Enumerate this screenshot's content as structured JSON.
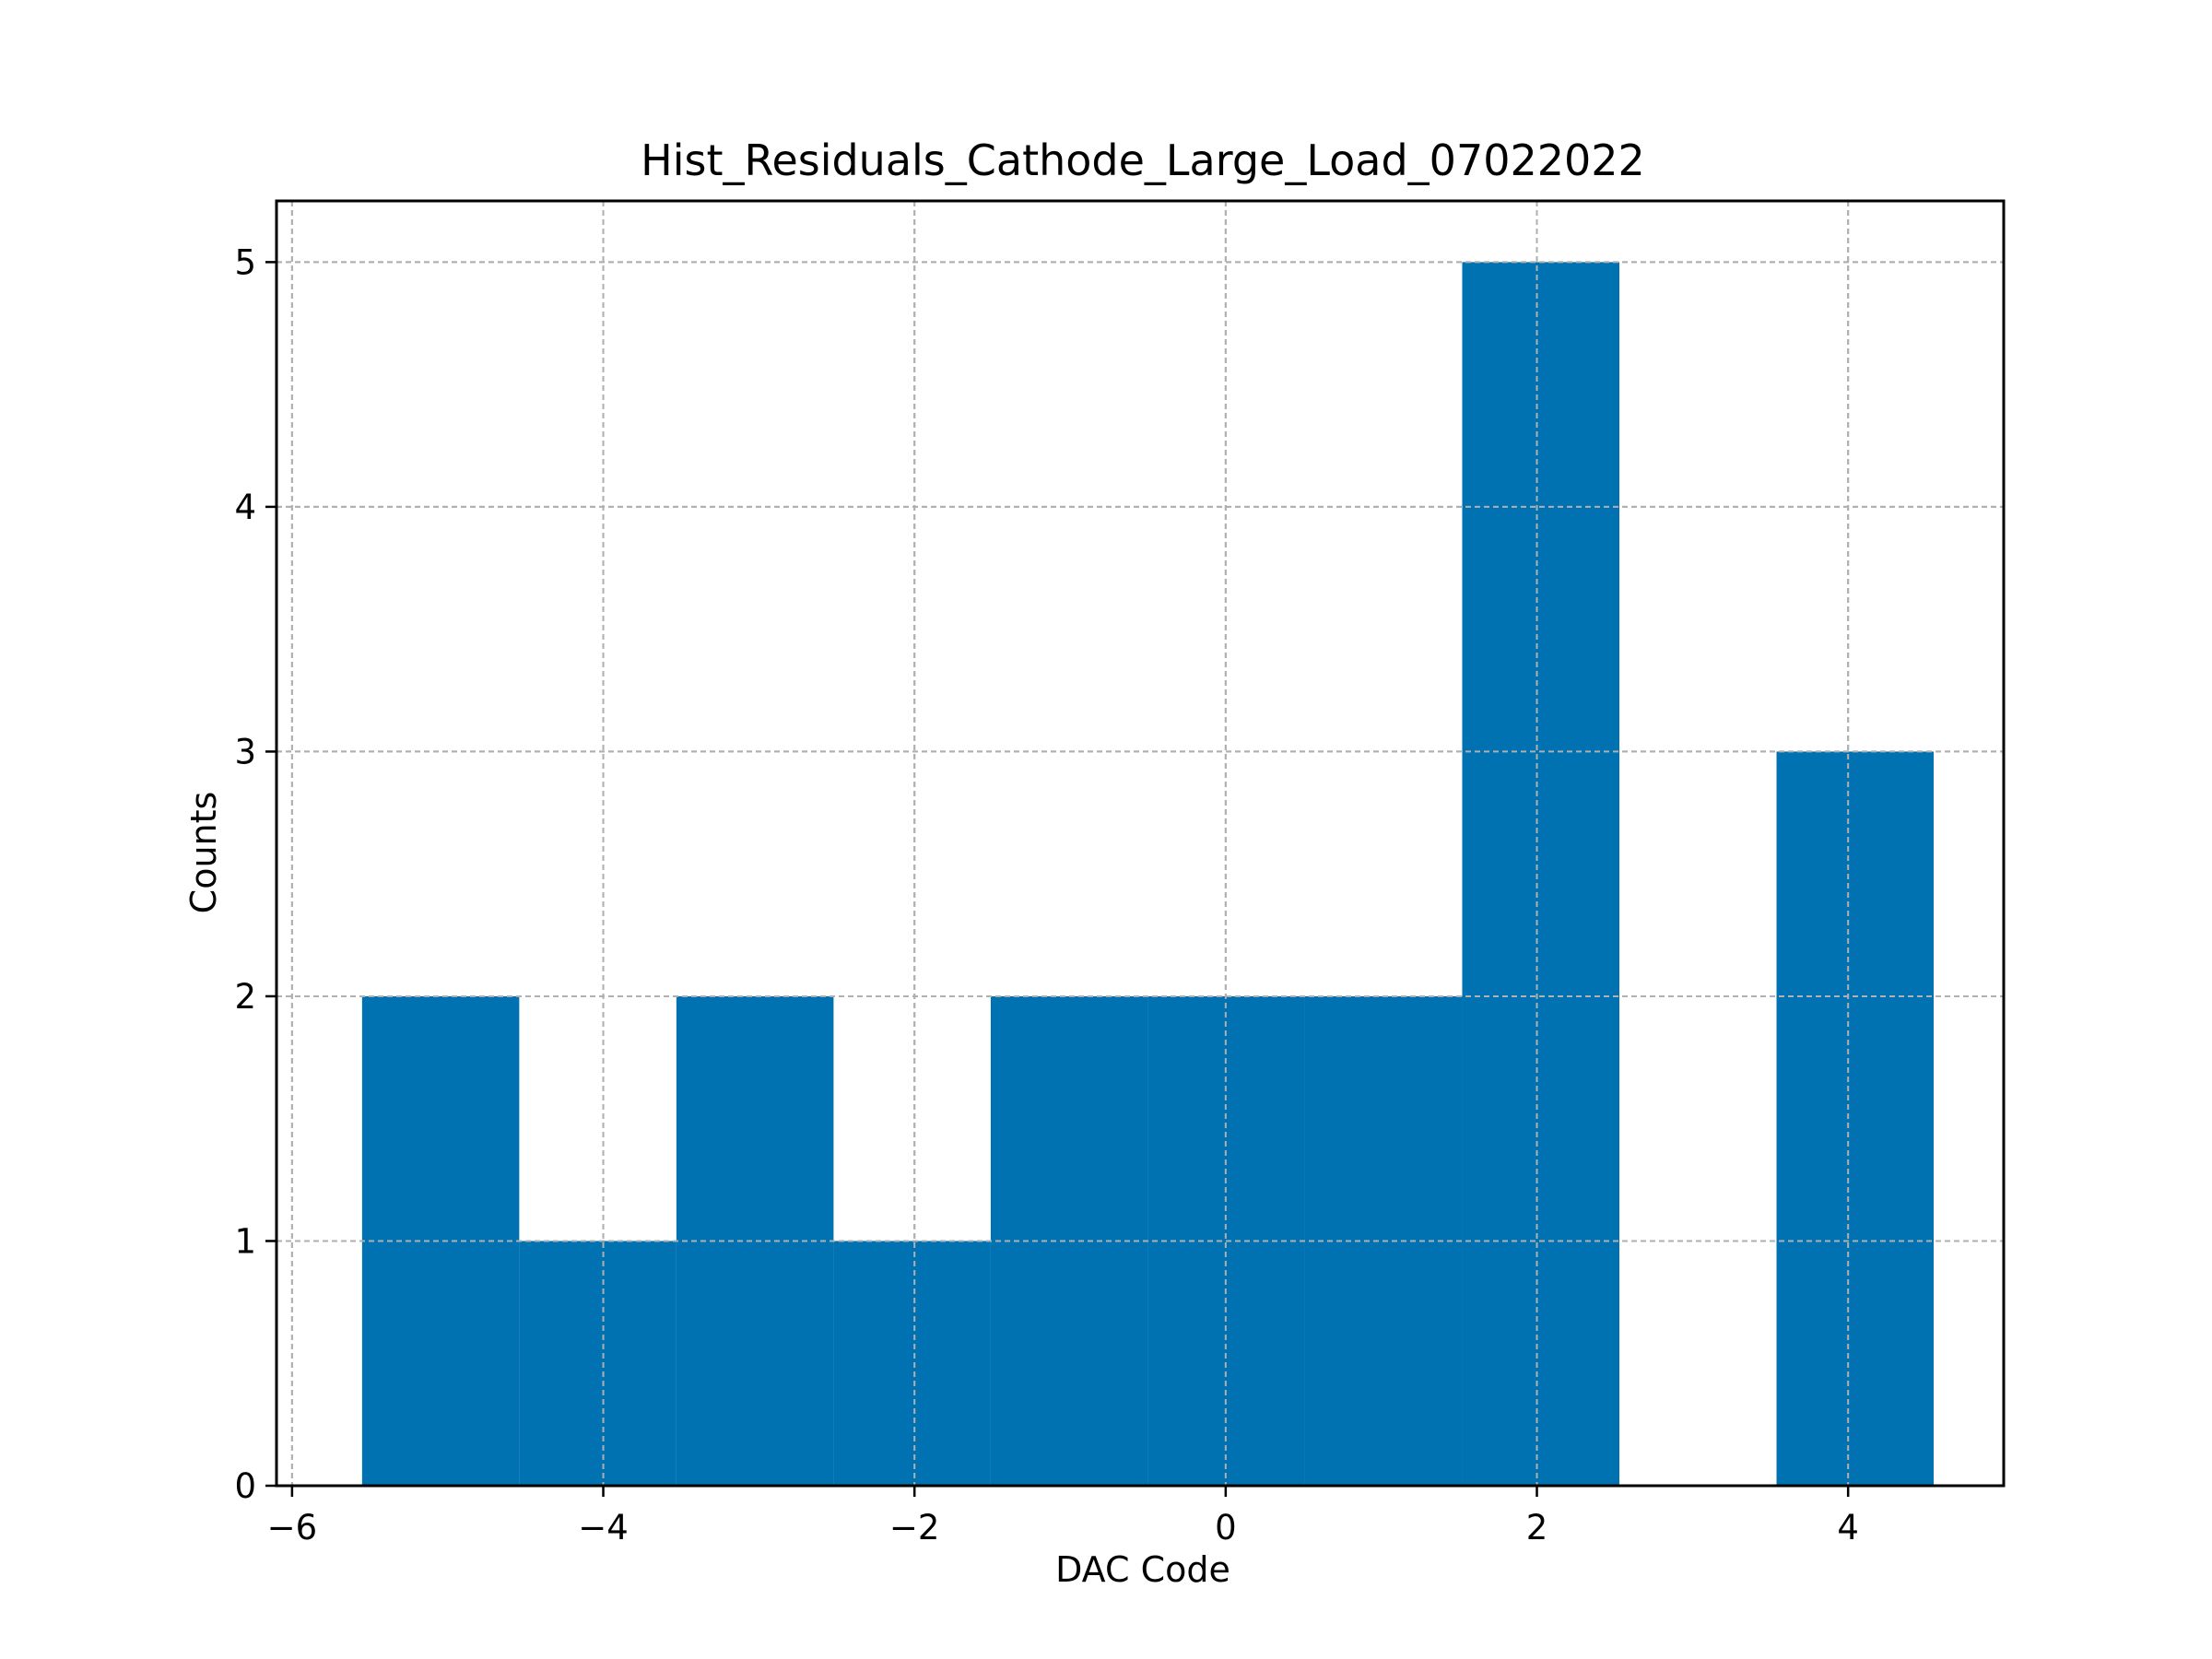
{
  "chart_data": {
    "type": "bar",
    "title": "Hist_Residuals_Cathode_Large_Load_07022022",
    "xlabel": "DAC Code",
    "ylabel": "Counts",
    "xlim": [
      -6.1,
      5.0
    ],
    "ylim": [
      0,
      5.25
    ],
    "xticks": [
      -6,
      -4,
      -2,
      0,
      2,
      4
    ],
    "xtick_labels": [
      "−6",
      "−4",
      "−2",
      "0",
      "2",
      "4"
    ],
    "yticks": [
      0,
      1,
      2,
      3,
      4,
      5
    ],
    "ytick_labels": [
      "0",
      "1",
      "2",
      "3",
      "4",
      "5"
    ],
    "grid": true,
    "bar_color": "#0072b2",
    "bins": [
      {
        "x0": -5.55,
        "x1": -4.54,
        "count": 2
      },
      {
        "x0": -4.54,
        "x1": -3.53,
        "count": 1
      },
      {
        "x0": -3.53,
        "x1": -2.52,
        "count": 2
      },
      {
        "x0": -2.52,
        "x1": -1.51,
        "count": 1
      },
      {
        "x0": -1.51,
        "x1": -0.5,
        "count": 2
      },
      {
        "x0": -0.5,
        "x1": 0.51,
        "count": 2
      },
      {
        "x0": 0.51,
        "x1": 1.52,
        "count": 2
      },
      {
        "x0": 1.52,
        "x1": 2.53,
        "count": 5
      },
      {
        "x0": 2.53,
        "x1": 3.54,
        "count": 0
      },
      {
        "x0": 3.54,
        "x1": 4.55,
        "count": 3
      }
    ]
  }
}
